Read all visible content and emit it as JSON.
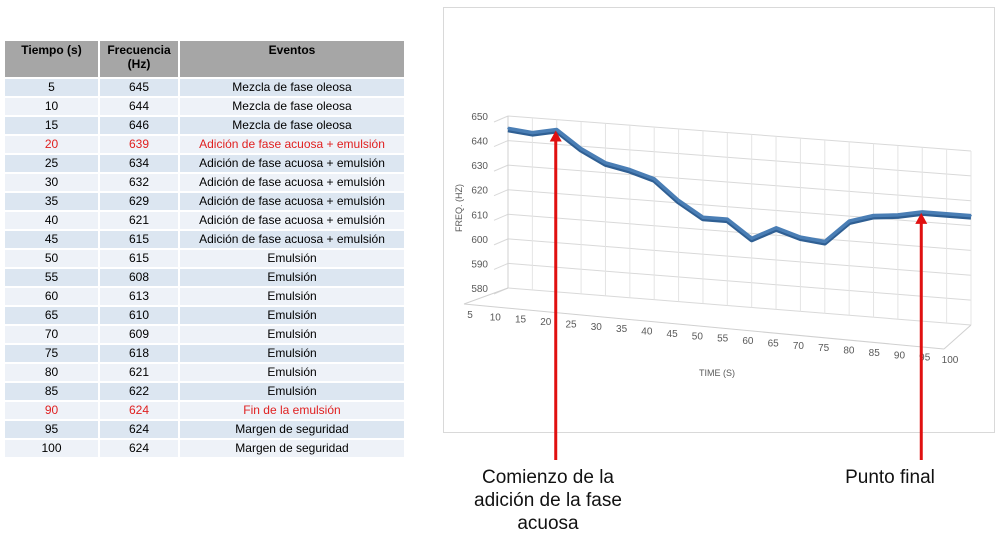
{
  "table": {
    "headers": [
      "Tiempo (s)",
      "Frecuencia (Hz)",
      "Eventos"
    ],
    "rows": [
      {
        "time": "5",
        "freq": "645",
        "event": "Mezcla de fase oleosa",
        "highlight": false
      },
      {
        "time": "10",
        "freq": "644",
        "event": "Mezcla de fase oleosa",
        "highlight": false
      },
      {
        "time": "15",
        "freq": "646",
        "event": "Mezcla de fase oleosa",
        "highlight": false
      },
      {
        "time": "20",
        "freq": "639",
        "event": "Adición de fase acuosa + emulsión",
        "highlight": true
      },
      {
        "time": "25",
        "freq": "634",
        "event": "Adición de fase acuosa + emulsión",
        "highlight": false
      },
      {
        "time": "30",
        "freq": "632",
        "event": "Adición de fase acuosa + emulsión",
        "highlight": false
      },
      {
        "time": "35",
        "freq": "629",
        "event": "Adición de fase acuosa + emulsión",
        "highlight": false
      },
      {
        "time": "40",
        "freq": "621",
        "event": "Adición de fase acuosa + emulsión",
        "highlight": false
      },
      {
        "time": "45",
        "freq": "615",
        "event": "Adición de fase acuosa + emulsión",
        "highlight": false
      },
      {
        "time": "50",
        "freq": "615",
        "event": "Emulsión",
        "highlight": false
      },
      {
        "time": "55",
        "freq": "608",
        "event": "Emulsión",
        "highlight": false
      },
      {
        "time": "60",
        "freq": "613",
        "event": "Emulsión",
        "highlight": false
      },
      {
        "time": "65",
        "freq": "610",
        "event": "Emulsión",
        "highlight": false
      },
      {
        "time": "70",
        "freq": "609",
        "event": "Emulsión",
        "highlight": false
      },
      {
        "time": "75",
        "freq": "618",
        "event": "Emulsión",
        "highlight": false
      },
      {
        "time": "80",
        "freq": "621",
        "event": "Emulsión",
        "highlight": false
      },
      {
        "time": "85",
        "freq": "622",
        "event": "Emulsión",
        "highlight": false
      },
      {
        "time": "90",
        "freq": "624",
        "event": "Fin de la emulsión",
        "highlight": true
      },
      {
        "time": "95",
        "freq": "624",
        "event": "Margen de seguridad",
        "highlight": false
      },
      {
        "time": "100",
        "freq": "624",
        "event": "Margen de seguridad",
        "highlight": false
      }
    ]
  },
  "chart_data": {
    "type": "line",
    "x": [
      5,
      10,
      15,
      20,
      25,
      30,
      35,
      40,
      45,
      50,
      55,
      60,
      65,
      70,
      75,
      80,
      85,
      90,
      95,
      100
    ],
    "series": [
      {
        "values": [
          645,
          644,
          646,
          639,
          634,
          632,
          629,
          621,
          615,
          615,
          608,
          613,
          610,
          609,
          618,
          621,
          622,
          624,
          624,
          624
        ]
      }
    ],
    "xlabel": "TIME (S)",
    "ylabel": "FREQ. (HZ)",
    "ylim": [
      580,
      650
    ],
    "yticks": [
      580,
      590,
      600,
      610,
      620,
      630,
      640,
      650
    ],
    "grid": true,
    "view": "3d-perspective",
    "line_color": "#4a7eb5"
  },
  "annotations": {
    "start": "Comienzo de la adición de la fase acuosa",
    "end": "Punto final",
    "arrow_color": "#e01010"
  }
}
